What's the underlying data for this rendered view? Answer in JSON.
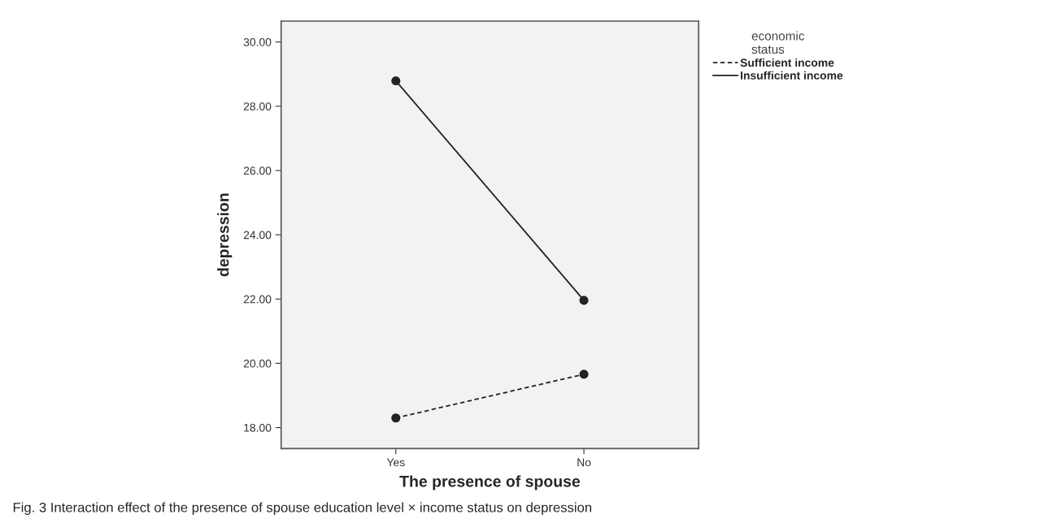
{
  "chart_data": {
    "type": "line",
    "xlabel": "The presence of spouse",
    "ylabel": "depression",
    "legend_title": "economic\nstatus",
    "categories": [
      "Yes",
      "No"
    ],
    "series": [
      {
        "name": "Sufficient income",
        "color": "#222222",
        "values": [
          18.3,
          19.66
        ],
        "line_style": "dashed"
      },
      {
        "name": "Insufficient income",
        "color": "#222222",
        "values": [
          28.79,
          21.96
        ],
        "line_style": "solid"
      }
    ],
    "ylim": [
      17.35,
      30.65
    ],
    "yticks": [
      {
        "value": 18,
        "label": "18.00"
      },
      {
        "value": 20,
        "label": "20.00"
      },
      {
        "value": 22,
        "label": "22.00"
      },
      {
        "value": 24,
        "label": "24.00"
      },
      {
        "value": 26,
        "label": "26.00"
      },
      {
        "value": 28,
        "label": "28.00"
      },
      {
        "value": 30,
        "label": "30.00"
      }
    ],
    "marker": "circle",
    "grid": false,
    "legend": "top right",
    "annotations": [
      "Fig. 3 Interaction effect of the presence of spouse education level × income status on depression"
    ]
  }
}
